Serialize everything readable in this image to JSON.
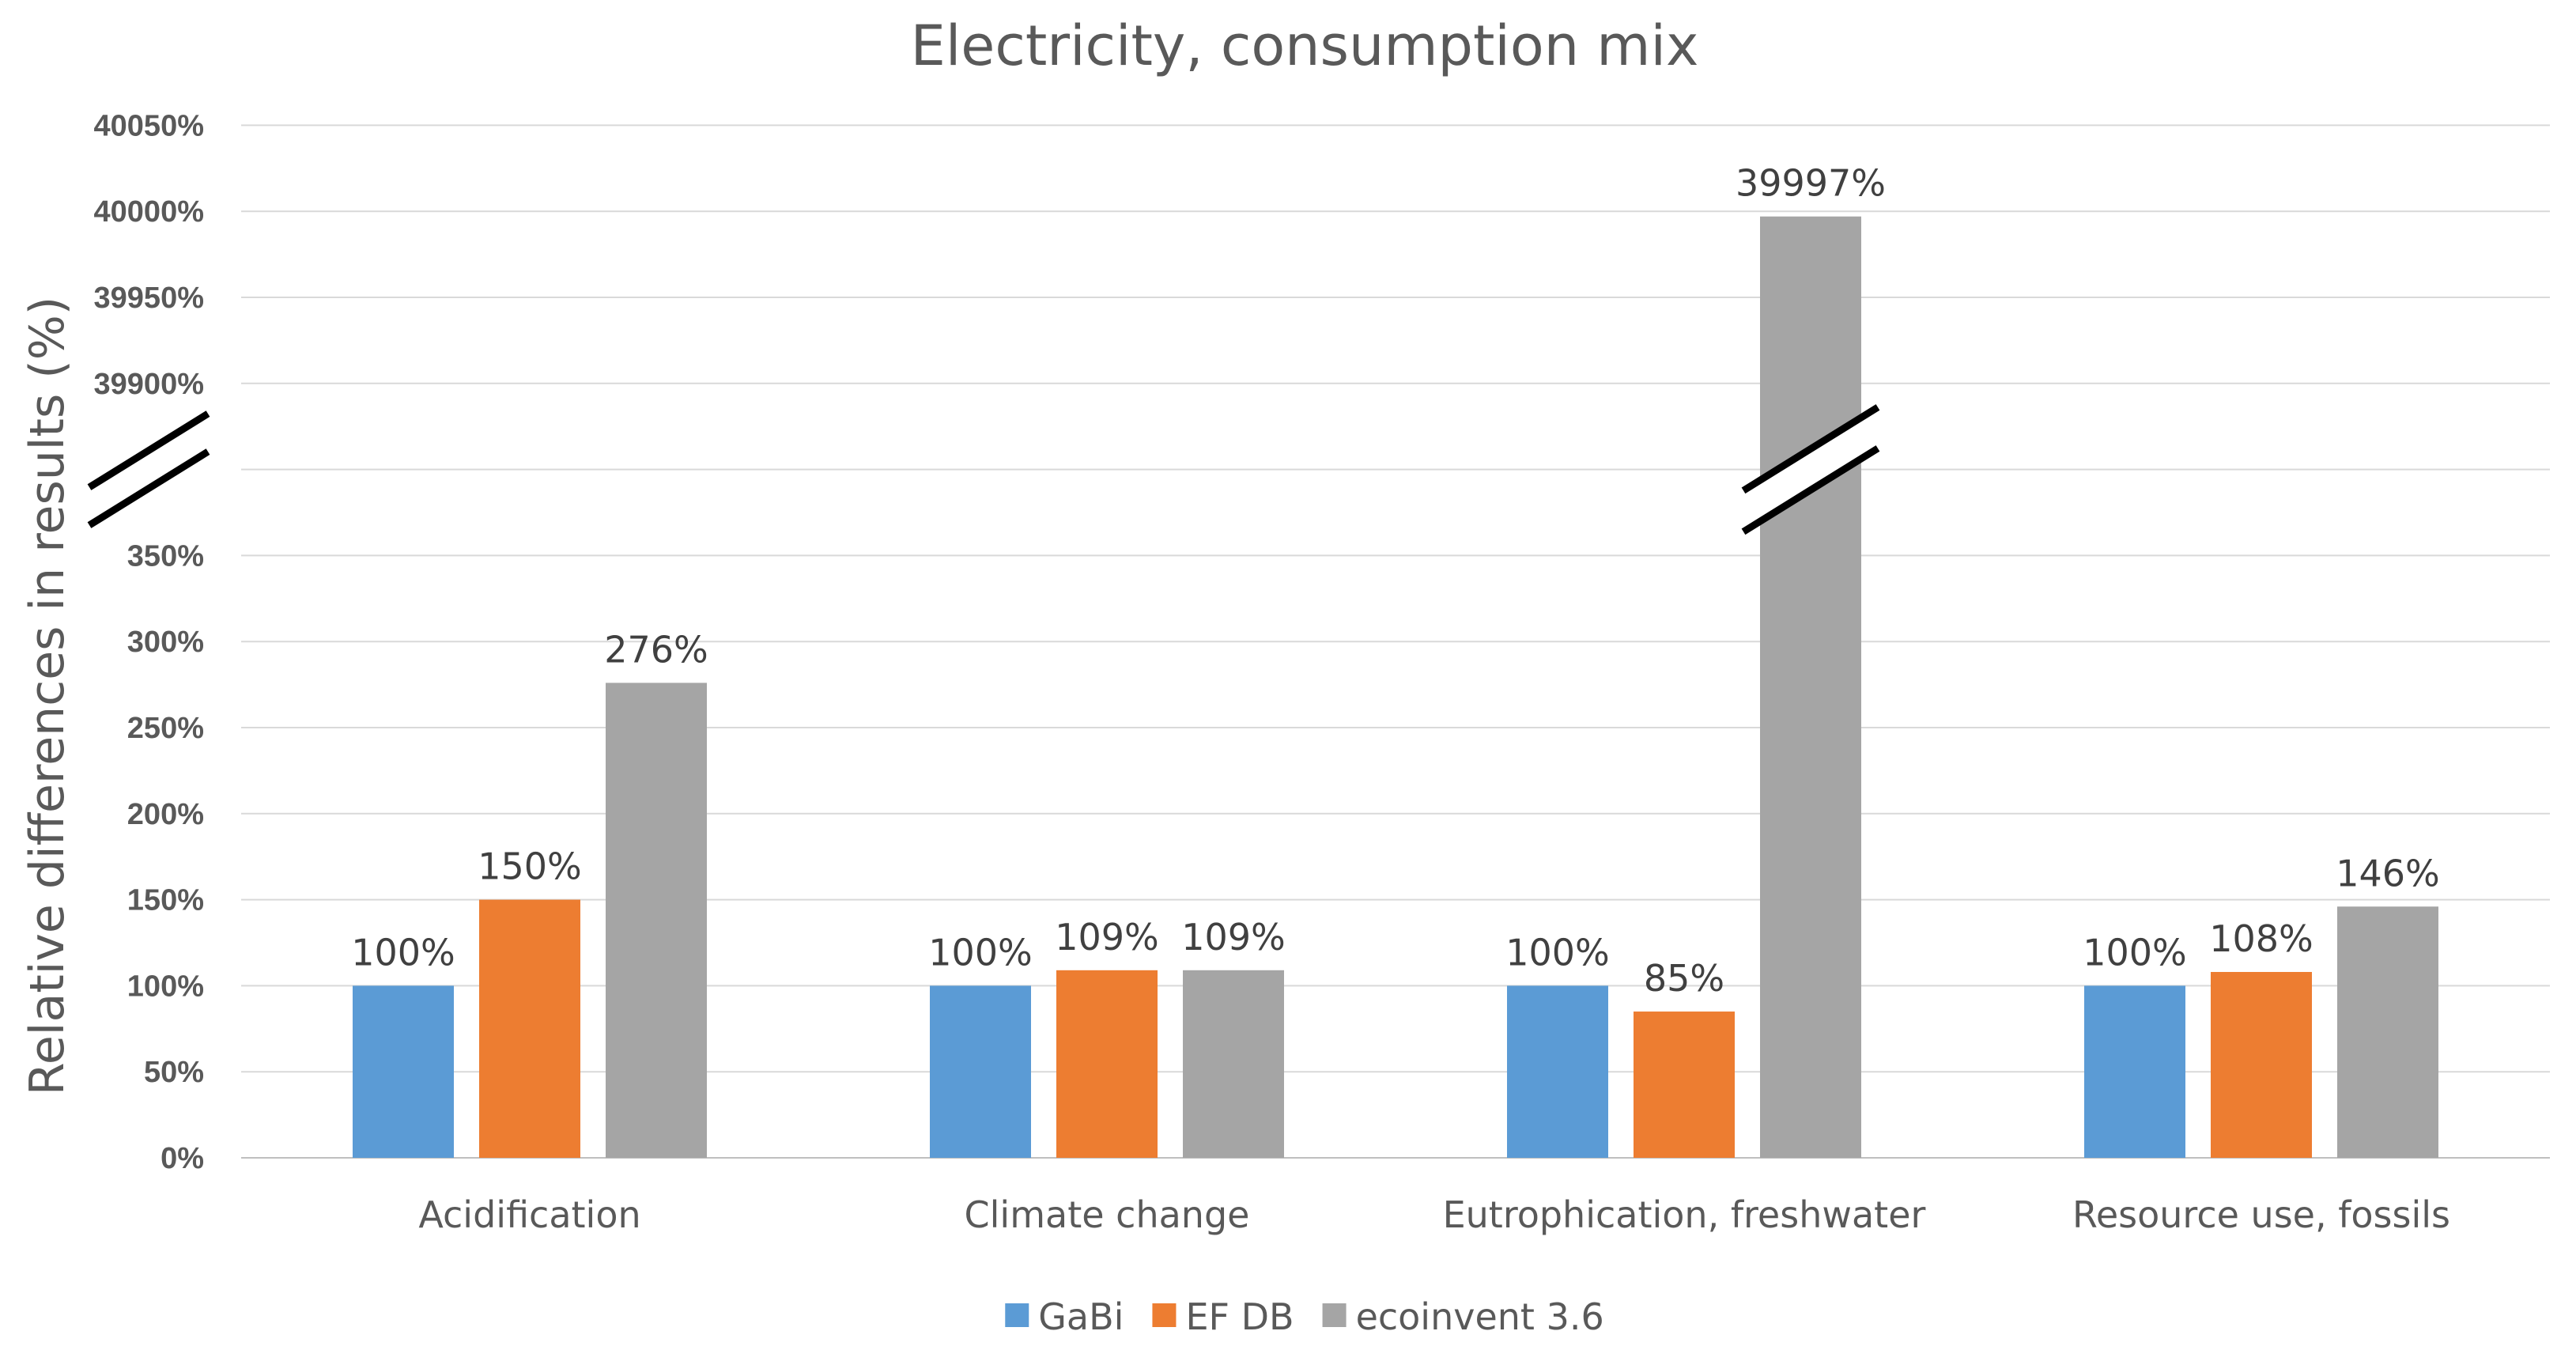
{
  "chart_data": {
    "type": "bar",
    "title": "Electricity, consumption mix",
    "xlabel": "",
    "ylabel": "Relative differences in results (%)",
    "categories": [
      "Acidification",
      "Climate change",
      "Eutrophication, freshwater",
      "Resource use, fossils"
    ],
    "series": [
      {
        "name": "GaBi",
        "color": "#5b9bd5",
        "values": [
          100,
          100,
          100,
          100
        ],
        "labels": [
          "100%",
          "100%",
          "100%",
          "100%"
        ]
      },
      {
        "name": "EF DB",
        "color": "#ed7d31",
        "values": [
          150,
          109,
          85,
          108
        ],
        "labels": [
          "150%",
          "109%",
          "85%",
          "108%"
        ]
      },
      {
        "name": "ecoinvent 3.6",
        "color": "#a5a5a5",
        "values": [
          276,
          109,
          39997,
          146
        ],
        "labels": [
          "276%",
          "109%",
          "39997%",
          "146%"
        ]
      }
    ],
    "y_axis": {
      "broken": true,
      "lower_range": [
        0,
        350
      ],
      "upper_range": [
        39900,
        40050
      ],
      "lower_ticks": [
        "0%",
        "50%",
        "100%",
        "150%",
        "200%",
        "250%",
        "300%",
        "350%"
      ],
      "upper_ticks": [
        "39900%",
        "39950%",
        "40000%",
        "40050%"
      ]
    },
    "grid": true,
    "legend_position": "bottom"
  }
}
